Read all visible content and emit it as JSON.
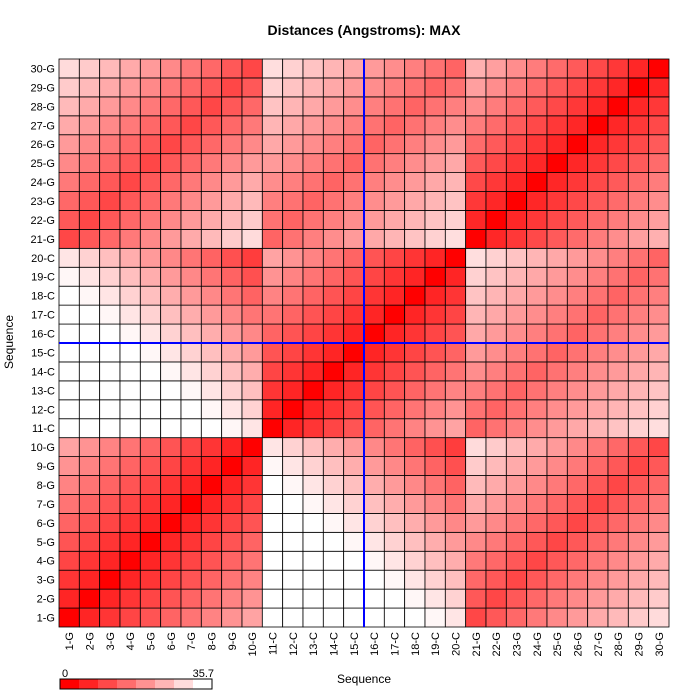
{
  "chart_data": {
    "type": "heatmap",
    "title": "Distances (Angstroms):  MAX",
    "xlabel": "Sequence",
    "ylabel": "Sequence",
    "residues": [
      "1-G",
      "2-G",
      "3-G",
      "4-G",
      "5-G",
      "6-G",
      "7-G",
      "8-G",
      "9-G",
      "10-G",
      "11-C",
      "12-C",
      "13-C",
      "14-C",
      "15-C",
      "16-C",
      "17-C",
      "18-C",
      "19-C",
      "20-C",
      "21-G",
      "22-G",
      "23-G",
      "24-G",
      "25-G",
      "26-G",
      "27-G",
      "28-G",
      "29-G",
      "30-G"
    ],
    "value_range": [
      0,
      35.7
    ],
    "colorscale": {
      "low": "#ff0000",
      "high": "#ffffff"
    },
    "legend": {
      "min_label": "0",
      "max_label": "35.7",
      "placement": "bottom-left"
    },
    "crosshair": {
      "x_between": [
        "15-C",
        "16-C"
      ],
      "y_between": [
        "15-C",
        "16-C"
      ],
      "color": "#0000ff"
    },
    "grid": true
  }
}
